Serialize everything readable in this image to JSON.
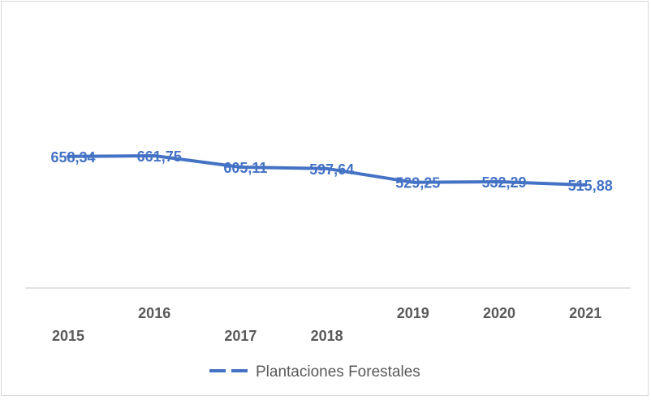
{
  "chart_data": {
    "type": "line",
    "categories": [
      "2015",
      "2016",
      "2017",
      "2018",
      "2019",
      "2020",
      "2021"
    ],
    "series": [
      {
        "name": "Plantaciones Forestales",
        "values": [
          658.34,
          661.75,
          605.11,
          597.64,
          529.25,
          532.29,
          515.88
        ],
        "data_labels": [
          "658,34",
          "661,75",
          "605,11",
          "597,64",
          "529,25",
          "532,29",
          "515,88"
        ],
        "color": "#4472c4",
        "line_style": "solid"
      }
    ],
    "title": "",
    "xlabel": "",
    "ylabel": "",
    "y_axis_visible": false,
    "grid": false,
    "legend": {
      "position": "bottom",
      "marker": "dashed-line"
    },
    "colors": {
      "series": "#4472c4",
      "axis": "#d9d9d9",
      "tick_text": "#595959"
    }
  }
}
